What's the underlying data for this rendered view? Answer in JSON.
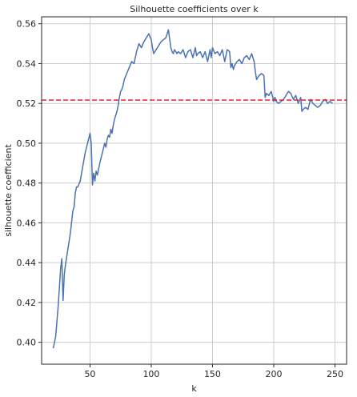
{
  "chart_data": {
    "type": "line",
    "title": "Silhouette coefficients over k",
    "xlabel": "k",
    "ylabel": "silhouette coefficient",
    "xlim": [
      10.5,
      259.5
    ],
    "ylim": [
      0.389,
      0.5635
    ],
    "xticks": [
      50,
      100,
      150,
      200,
      250
    ],
    "yticks": [
      0.4,
      0.42,
      0.44,
      0.46,
      0.48,
      0.5,
      0.52,
      0.54,
      0.56
    ],
    "ytick_labels": [
      "0.40",
      "0.42",
      "0.44",
      "0.46",
      "0.48",
      "0.50",
      "0.52",
      "0.54",
      "0.56"
    ],
    "grid": true,
    "series": [
      {
        "color": "#4c72b0",
        "x": [
          20,
          22,
          24,
          26,
          27,
          28,
          29,
          30,
          32,
          34,
          36,
          37,
          38,
          39,
          40,
          42,
          44,
          46,
          48,
          50,
          51,
          52,
          53,
          54,
          55,
          56,
          58,
          60,
          62,
          63,
          64,
          65,
          66,
          67,
          68,
          69,
          70,
          71,
          72,
          73,
          74,
          75,
          76,
          77,
          78,
          80,
          82,
          84,
          86,
          88,
          90,
          92,
          94,
          96,
          98,
          100,
          101,
          102,
          104,
          106,
          107,
          108,
          110,
          112,
          114,
          116,
          117,
          118,
          119,
          120,
          121,
          122,
          124,
          126,
          128,
          130,
          132,
          134,
          136,
          137,
          138,
          140,
          142,
          144,
          146,
          148,
          149,
          150,
          152,
          154,
          156,
          158,
          160,
          162,
          164,
          165,
          166,
          167,
          168,
          170,
          172,
          174,
          176,
          178,
          180,
          182,
          184,
          185,
          186,
          188,
          190,
          192,
          193,
          194,
          196,
          198,
          200,
          201,
          202,
          204,
          206,
          208,
          210,
          212,
          214,
          216,
          218,
          220,
          222,
          223,
          224,
          226,
          228,
          230,
          232,
          234,
          236,
          238,
          240,
          242,
          244,
          246,
          248
        ],
        "values": [
          0.397,
          0.403,
          0.418,
          0.437,
          0.442,
          0.421,
          0.434,
          0.439,
          0.447,
          0.455,
          0.466,
          0.468,
          0.475,
          0.478,
          0.478,
          0.481,
          0.488,
          0.495,
          0.5,
          0.505,
          0.5,
          0.479,
          0.485,
          0.481,
          0.486,
          0.484,
          0.49,
          0.495,
          0.5,
          0.498,
          0.502,
          0.504,
          0.503,
          0.507,
          0.505,
          0.509,
          0.512,
          0.514,
          0.516,
          0.519,
          0.523,
          0.526,
          0.527,
          0.529,
          0.532,
          0.535,
          0.538,
          0.541,
          0.54,
          0.546,
          0.55,
          0.548,
          0.551,
          0.553,
          0.555,
          0.552,
          0.548,
          0.545,
          0.547,
          0.549,
          0.55,
          0.551,
          0.552,
          0.553,
          0.557,
          0.548,
          0.546,
          0.545,
          0.547,
          0.546,
          0.545,
          0.546,
          0.545,
          0.547,
          0.543,
          0.546,
          0.547,
          0.543,
          0.548,
          0.544,
          0.545,
          0.546,
          0.543,
          0.546,
          0.541,
          0.547,
          0.543,
          0.548,
          0.545,
          0.546,
          0.544,
          0.547,
          0.541,
          0.547,
          0.546,
          0.538,
          0.54,
          0.537,
          0.539,
          0.541,
          0.542,
          0.54,
          0.543,
          0.544,
          0.542,
          0.545,
          0.541,
          0.536,
          0.532,
          0.534,
          0.535,
          0.534,
          0.523,
          0.525,
          0.524,
          0.526,
          0.521,
          0.523,
          0.521,
          0.52,
          0.521,
          0.522,
          0.524,
          0.526,
          0.525,
          0.522,
          0.524,
          0.52,
          0.523,
          0.516,
          0.517,
          0.518,
          0.517,
          0.522,
          0.52,
          0.519,
          0.518,
          0.519,
          0.521,
          0.522,
          0.52,
          0.521,
          0.52
        ]
      },
      {
        "type": "hline",
        "style": "dashed",
        "color": "#e8222b",
        "y": 0.5217
      }
    ]
  }
}
